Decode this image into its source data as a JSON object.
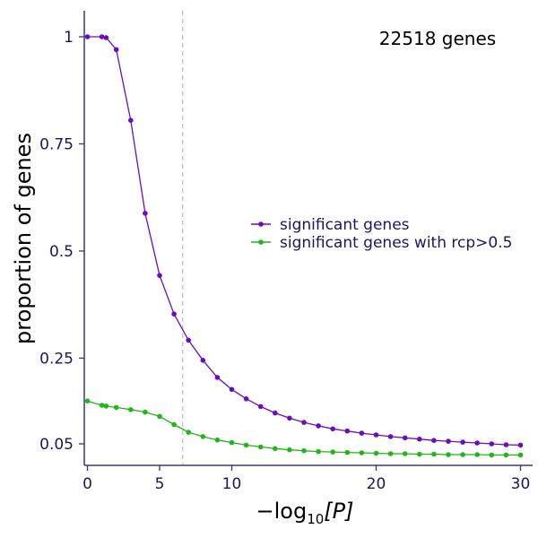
{
  "chart_data": {
    "type": "line",
    "title": "",
    "annotation": "22518 genes",
    "xlabel": {
      "prefix": "−log",
      "sub": "10",
      "arg": "[P]"
    },
    "ylabel": "proportion of genes",
    "xlim": [
      0,
      30
    ],
    "ylim": [
      0.05,
      1.0
    ],
    "x_ticks": [
      0,
      5,
      10,
      20,
      30
    ],
    "y_ticks": [
      1,
      0.75,
      0.5,
      0.25,
      0.05
    ],
    "y_tick_labels": [
      "1",
      "0.75",
      "0.5",
      "0.25",
      "0.05"
    ],
    "reference_line_x": 6.6,
    "grid": false,
    "legend_position": "right-middle",
    "series": [
      {
        "name": "significant genes",
        "color": "#6a0dbf",
        "x": [
          0,
          1,
          1.3,
          2,
          3,
          4,
          5,
          6,
          7,
          8,
          9,
          10,
          11,
          12,
          13,
          14,
          15,
          16,
          17,
          18,
          19,
          20,
          21,
          22,
          23,
          24,
          25,
          26,
          27,
          28,
          29,
          30
        ],
        "y": [
          1.0,
          1.0,
          0.998,
          0.97,
          0.805,
          0.588,
          0.443,
          0.353,
          0.292,
          0.245,
          0.205,
          0.177,
          0.155,
          0.137,
          0.122,
          0.11,
          0.1,
          0.092,
          0.085,
          0.08,
          0.075,
          0.071,
          0.067,
          0.064,
          0.061,
          0.058,
          0.056,
          0.054,
          0.052,
          0.05,
          0.048,
          0.047
        ]
      },
      {
        "name": "significant genes with rcp>0.5",
        "color": "#22b51c",
        "x": [
          0,
          1,
          1.3,
          2,
          3,
          4,
          5,
          6,
          7,
          8,
          9,
          10,
          11,
          12,
          13,
          14,
          15,
          16,
          17,
          18,
          19,
          20,
          21,
          22,
          23,
          24,
          25,
          26,
          27,
          28,
          29,
          30
        ],
        "y": [
          0.15,
          0.14,
          0.138,
          0.135,
          0.13,
          0.124,
          0.114,
          0.095,
          0.077,
          0.067,
          0.059,
          0.053,
          0.047,
          0.043,
          0.039,
          0.036,
          0.034,
          0.032,
          0.031,
          0.03,
          0.029,
          0.028,
          0.027,
          0.027,
          0.026,
          0.026,
          0.025,
          0.025,
          0.025,
          0.024,
          0.024,
          0.024
        ]
      }
    ]
  }
}
